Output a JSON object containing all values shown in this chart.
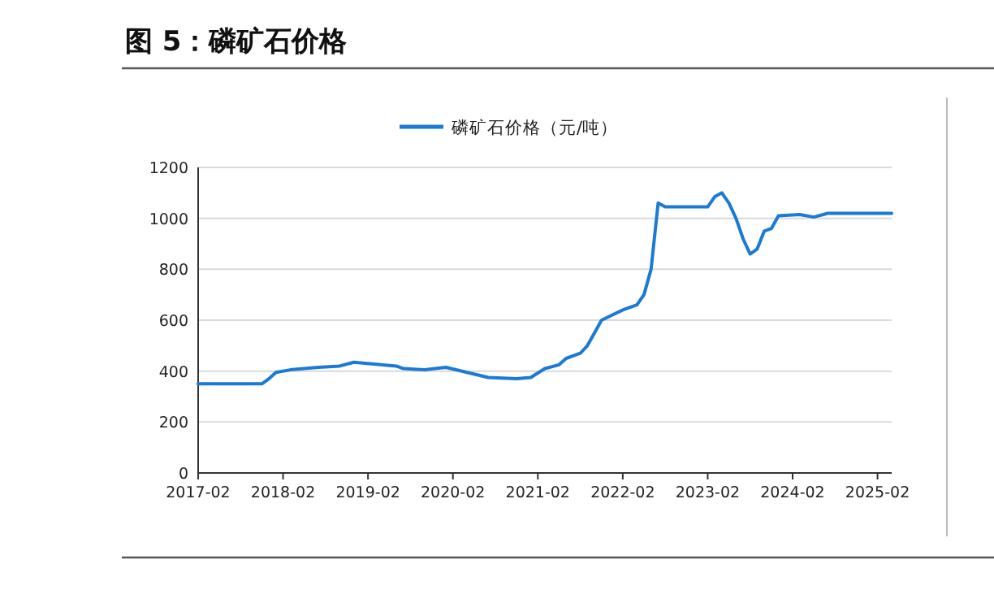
{
  "chart_data": {
    "type": "line",
    "title": "图 5：磷矿石价格",
    "x": [
      "2017-02",
      "2017-11",
      "2017-12",
      "2018-01",
      "2018-03",
      "2018-07",
      "2018-10",
      "2018-12",
      "2019-06",
      "2019-07",
      "2019-10",
      "2020-01",
      "2020-04",
      "2020-07",
      "2020-11",
      "2021-01",
      "2021-03",
      "2021-05",
      "2021-06",
      "2021-08",
      "2021-09",
      "2021-10",
      "2021-11",
      "2022-02",
      "2022-04",
      "2022-05",
      "2022-06",
      "2022-07",
      "2022-08",
      "2023-02",
      "2023-03",
      "2023-04",
      "2023-05",
      "2023-06",
      "2023-07",
      "2023-08",
      "2023-09",
      "2023-10",
      "2023-11",
      "2023-12",
      "2024-03",
      "2024-05",
      "2024-07",
      "2025-04"
    ],
    "series": [
      {
        "name": "磷矿石价格（元/吨）",
        "color": "#1a7ad4",
        "values": [
          350,
          350,
          370,
          395,
          405,
          415,
          420,
          435,
          420,
          410,
          405,
          415,
          395,
          375,
          370,
          375,
          410,
          425,
          450,
          470,
          500,
          550,
          600,
          640,
          660,
          700,
          800,
          1060,
          1045,
          1045,
          1085,
          1100,
          1060,
          1000,
          920,
          860,
          880,
          950,
          960,
          1010,
          1015,
          1005,
          1020,
          1020
        ]
      }
    ],
    "xlim": [
      "2017-02",
      "2025-04"
    ],
    "xticks": [
      "2017-02",
      "2018-02",
      "2019-02",
      "2020-02",
      "2021-02",
      "2022-02",
      "2023-02",
      "2024-02",
      "2025-02"
    ],
    "ylim": [
      0,
      1200
    ],
    "yticks": [
      0,
      200,
      400,
      600,
      800,
      1000,
      1200
    ],
    "grid": "y",
    "legend": "top",
    "marker": "none",
    "line_style": "solid"
  }
}
